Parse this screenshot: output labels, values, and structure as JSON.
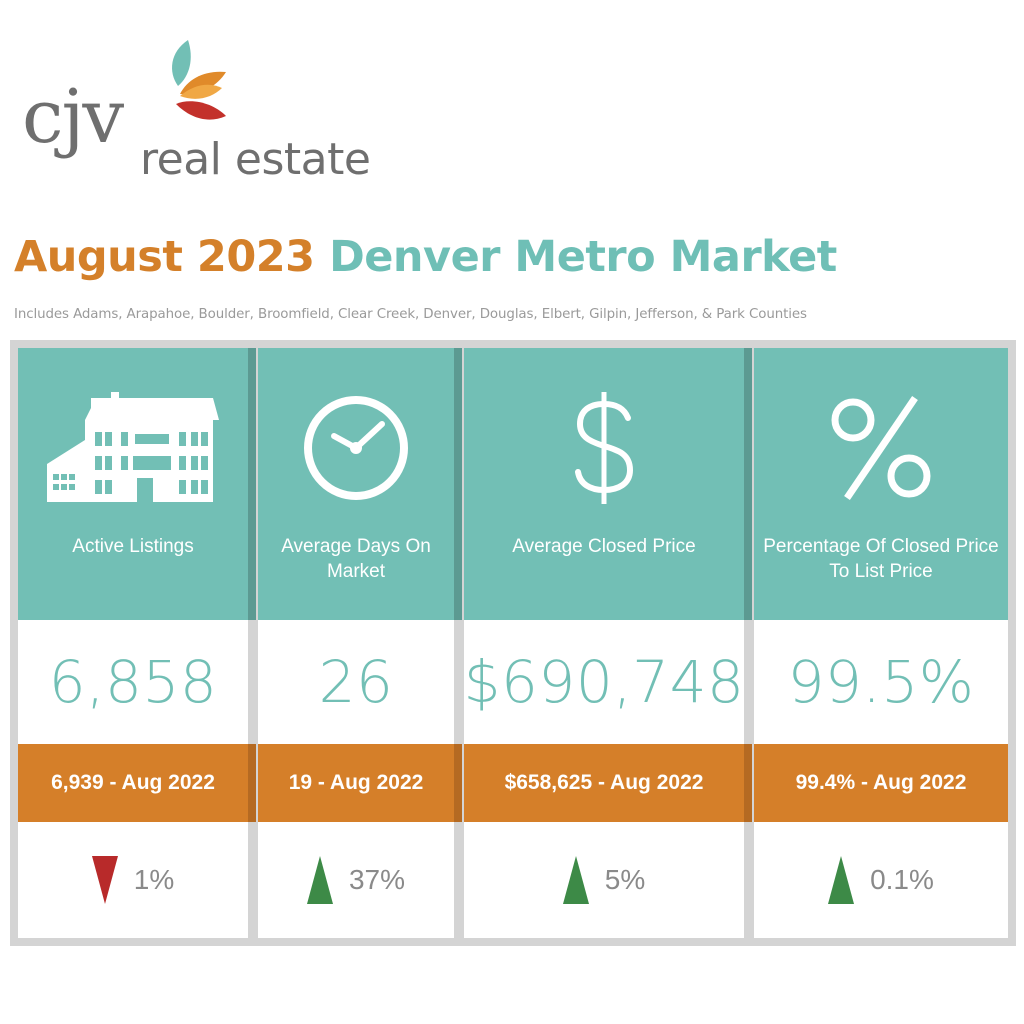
{
  "logo": {
    "brand": "cjv",
    "sub": "real estate"
  },
  "header": {
    "date": "August 2023",
    "title": "Denver Metro Market",
    "subtitle": "Includes Adams, Arapahoe, Boulder, Broomfield, Clear Creek, Denver, Douglas, Elbert, Gilpin, Jefferson, & Park Counties"
  },
  "colors": {
    "teal": "#72bfb5",
    "orange": "#d57f29",
    "up": "#3d8a47",
    "down": "#b82a2a",
    "gray": "#8a8a8a"
  },
  "metrics": [
    {
      "icon": "house-icon",
      "label": "Active Listings",
      "value": "6,858",
      "previous": "6,939 - Aug 2022",
      "direction": "down",
      "change": "1%"
    },
    {
      "icon": "clock-icon",
      "label": "Average Days On Market",
      "value": "26",
      "previous": "19 - Aug 2022",
      "direction": "up",
      "change": "37%"
    },
    {
      "icon": "dollar-icon",
      "label": "Average Closed Price",
      "value": "$690,748",
      "previous": "$658,625 - Aug 2022",
      "direction": "up",
      "change": "5%"
    },
    {
      "icon": "percent-icon",
      "label": "Percentage Of Closed Price To List Price",
      "value": "99.5%",
      "previous": "99.4% - Aug 2022",
      "direction": "up",
      "change": "0.1%"
    }
  ]
}
